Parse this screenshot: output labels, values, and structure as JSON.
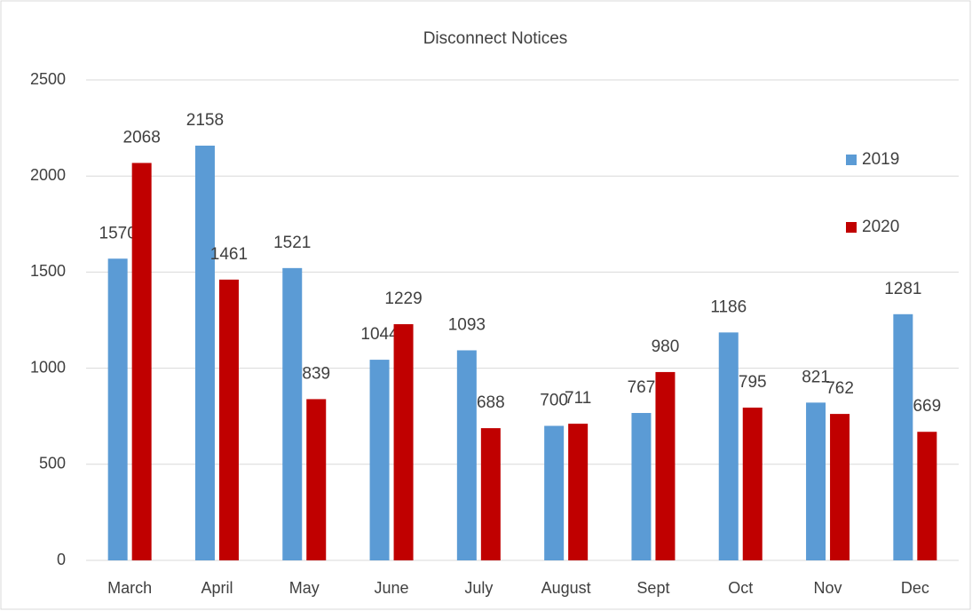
{
  "chart_data": {
    "type": "bar",
    "title": "Disconnect Notices",
    "categories": [
      "March",
      "April",
      "May",
      "June",
      "July",
      "August",
      "Sept",
      "Oct",
      "Nov",
      "Dec"
    ],
    "series": [
      {
        "name": "2019",
        "color": "#5b9bd5",
        "values": [
          1570,
          2158,
          1521,
          1044,
          1093,
          700,
          767,
          1186,
          821,
          1281
        ]
      },
      {
        "name": "2020",
        "color": "#c00000",
        "values": [
          2068,
          1461,
          839,
          1229,
          688,
          711,
          980,
          795,
          762,
          669
        ]
      }
    ],
    "ylim": [
      0,
      2500
    ],
    "yticks": [
      0,
      500,
      1000,
      1500,
      2000,
      2500
    ],
    "grid": true,
    "legend": "right"
  }
}
